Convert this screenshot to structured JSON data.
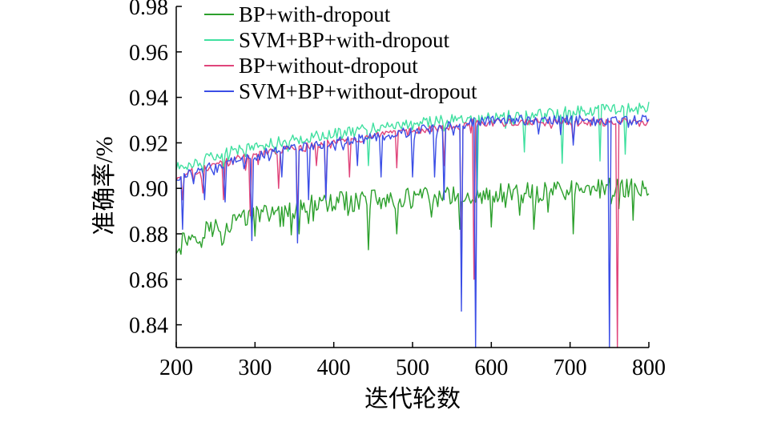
{
  "chart_data": {
    "type": "line",
    "title": "",
    "xlabel": "迭代轮数",
    "ylabel": "准确率/%",
    "xlim": [
      200,
      800
    ],
    "ylim": [
      0.83,
      0.98
    ],
    "x_ticks": [
      200,
      300,
      400,
      500,
      600,
      700,
      800
    ],
    "x_tick_labels": [
      "200",
      "300",
      "400",
      "500",
      "600",
      "700",
      "800"
    ],
    "y_ticks": [
      0.84,
      0.86,
      0.88,
      0.9,
      0.92,
      0.94,
      0.96,
      0.98
    ],
    "y_tick_labels": [
      "0.84",
      "0.86",
      "0.88",
      "0.90",
      "0.92",
      "0.94",
      "0.96",
      "0.98"
    ],
    "grid": false,
    "legend_position": "top-left",
    "series": [
      {
        "name": "BP+with-dropout",
        "color": "#2ca02c",
        "x": [
          200,
          220,
          240,
          260,
          280,
          300,
          320,
          340,
          360,
          380,
          400,
          420,
          440,
          460,
          480,
          500,
          520,
          540,
          560,
          580,
          600,
          620,
          640,
          660,
          680,
          700,
          720,
          740,
          760,
          780,
          800
        ],
        "y": [
          0.876,
          0.879,
          0.882,
          0.884,
          0.886,
          0.888,
          0.889,
          0.891,
          0.892,
          0.893,
          0.894,
          0.894,
          0.895,
          0.895,
          0.895,
          0.896,
          0.896,
          0.896,
          0.897,
          0.897,
          0.897,
          0.898,
          0.898,
          0.898,
          0.899,
          0.899,
          0.899,
          0.9,
          0.9,
          0.9,
          0.9
        ],
        "dips": [
          [
            206,
            0.871
          ],
          [
            233,
            0.874
          ],
          [
            260,
            0.876
          ],
          [
            300,
            0.879
          ],
          [
            357,
            0.88
          ],
          [
            445,
            0.873
          ],
          [
            480,
            0.88
          ],
          [
            560,
            0.882
          ],
          [
            600,
            0.883
          ],
          [
            655,
            0.882
          ],
          [
            705,
            0.88
          ],
          [
            780,
            0.886
          ]
        ]
      },
      {
        "name": "SVM+BP+with-dropout",
        "color": "#40e0a0",
        "x": [
          200,
          220,
          240,
          260,
          280,
          300,
          320,
          340,
          360,
          380,
          400,
          420,
          440,
          460,
          480,
          500,
          520,
          540,
          560,
          580,
          600,
          620,
          640,
          660,
          680,
          700,
          720,
          740,
          760,
          780,
          800
        ],
        "y": [
          0.909,
          0.911,
          0.913,
          0.915,
          0.917,
          0.918,
          0.92,
          0.921,
          0.922,
          0.923,
          0.924,
          0.925,
          0.926,
          0.927,
          0.928,
          0.928,
          0.929,
          0.93,
          0.93,
          0.931,
          0.931,
          0.932,
          0.932,
          0.933,
          0.933,
          0.934,
          0.934,
          0.935,
          0.935,
          0.935,
          0.936
        ],
        "dips": [
          [
            445,
            0.91
          ],
          [
            583,
            0.897
          ],
          [
            642,
            0.916
          ],
          [
            690,
            0.911
          ],
          [
            738,
            0.912
          ],
          [
            770,
            0.915
          ]
        ]
      },
      {
        "name": "BP+without-dropout",
        "color": "#e0457b",
        "x": [
          200,
          220,
          240,
          260,
          280,
          300,
          320,
          340,
          360,
          380,
          400,
          420,
          440,
          460,
          480,
          500,
          520,
          540,
          560,
          580,
          600,
          620,
          640,
          660,
          680,
          700,
          720,
          740,
          760,
          780,
          800
        ],
        "y": [
          0.904,
          0.907,
          0.909,
          0.911,
          0.913,
          0.914,
          0.916,
          0.917,
          0.918,
          0.919,
          0.92,
          0.921,
          0.922,
          0.923,
          0.924,
          0.925,
          0.926,
          0.927,
          0.928,
          0.929,
          0.929,
          0.929,
          0.929,
          0.929,
          0.929,
          0.929,
          0.929,
          0.929,
          0.929,
          0.929,
          0.929
        ],
        "dips": [
          [
            208,
            0.895
          ],
          [
            235,
            0.898
          ],
          [
            260,
            0.895
          ],
          [
            295,
            0.888
          ],
          [
            330,
            0.9
          ],
          [
            355,
            0.885
          ],
          [
            378,
            0.91
          ],
          [
            390,
            0.895
          ],
          [
            420,
            0.905
          ],
          [
            480,
            0.909
          ],
          [
            540,
            0.91
          ],
          [
            562,
            0.86
          ],
          [
            578,
            0.86
          ],
          [
            705,
            0.92
          ],
          [
            760,
            0.83
          ]
        ]
      },
      {
        "name": "SVM+BP+without-dropout",
        "color": "#3b4ee6",
        "x": [
          200,
          220,
          240,
          260,
          280,
          300,
          320,
          340,
          360,
          380,
          400,
          420,
          440,
          460,
          480,
          500,
          520,
          540,
          560,
          580,
          600,
          620,
          640,
          660,
          680,
          700,
          720,
          740,
          760,
          780,
          800
        ],
        "y": [
          0.904,
          0.907,
          0.909,
          0.911,
          0.913,
          0.914,
          0.916,
          0.917,
          0.918,
          0.919,
          0.92,
          0.921,
          0.922,
          0.923,
          0.924,
          0.925,
          0.926,
          0.927,
          0.928,
          0.929,
          0.93,
          0.93,
          0.93,
          0.93,
          0.93,
          0.93,
          0.93,
          0.93,
          0.93,
          0.93,
          0.93
        ],
        "dips": [
          [
            209,
            0.882
          ],
          [
            222,
            0.902
          ],
          [
            236,
            0.895
          ],
          [
            262,
            0.894
          ],
          [
            296,
            0.877
          ],
          [
            335,
            0.905
          ],
          [
            354,
            0.876
          ],
          [
            368,
            0.895
          ],
          [
            390,
            0.895
          ],
          [
            430,
            0.91
          ],
          [
            460,
            0.905
          ],
          [
            500,
            0.905
          ],
          [
            528,
            0.905
          ],
          [
            540,
            0.895
          ],
          [
            562,
            0.846
          ],
          [
            581,
            0.83
          ],
          [
            705,
            0.919
          ],
          [
            750,
            0.83
          ]
        ]
      }
    ]
  }
}
